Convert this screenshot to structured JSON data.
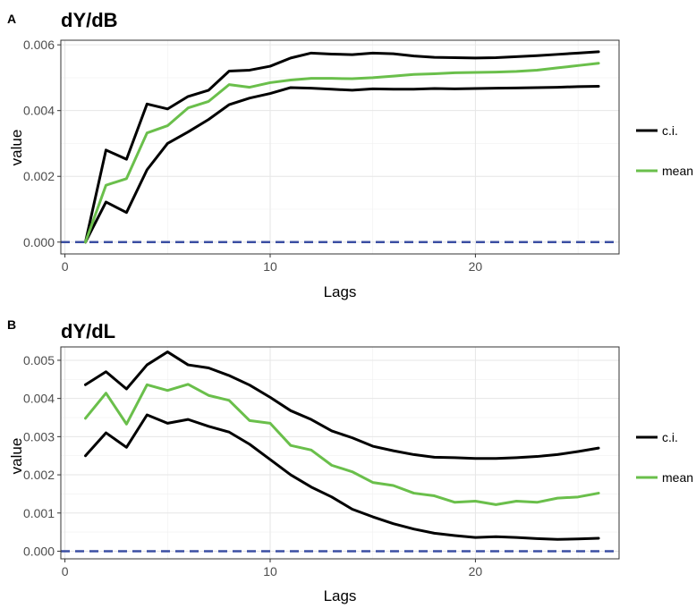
{
  "chart_data": [
    {
      "panel": "A",
      "type": "line",
      "title": "dY/dB",
      "xlabel": "Lags",
      "ylabel": "value",
      "xlim": [
        -0.2,
        27
      ],
      "ylim": [
        -0.00036,
        0.00614
      ],
      "xticks": [
        0,
        10,
        20
      ],
      "yticks": [
        0.0,
        0.002,
        0.004,
        0.006
      ],
      "ytick_labels": [
        "0.000",
        "0.002",
        "0.004",
        "0.006"
      ],
      "grid": true,
      "legend": "right",
      "reference_line": {
        "y": 0,
        "style": "dashed",
        "color": "#3b4fa3"
      },
      "x": [
        1,
        2,
        3,
        4,
        5,
        6,
        7,
        8,
        9,
        10,
        11,
        12,
        13,
        14,
        15,
        16,
        17,
        18,
        19,
        20,
        21,
        22,
        23,
        24,
        25,
        26
      ],
      "series": [
        {
          "name": "c.i.",
          "role": "upper",
          "color": "#000000",
          "values": [
            0.0,
            0.0028,
            0.00252,
            0.0042,
            0.00405,
            0.00443,
            0.00462,
            0.0052,
            0.00523,
            0.00535,
            0.0056,
            0.00575,
            0.00572,
            0.0057,
            0.00575,
            0.00573,
            0.00566,
            0.00562,
            0.00561,
            0.0056,
            0.00561,
            0.00564,
            0.00567,
            0.00571,
            0.00575,
            0.00579
          ]
        },
        {
          "name": "c.i.",
          "role": "lower",
          "color": "#000000",
          "values": [
            0.0,
            0.00122,
            0.0009,
            0.0022,
            0.003,
            0.00335,
            0.00373,
            0.00418,
            0.00438,
            0.00452,
            0.0047,
            0.00468,
            0.00465,
            0.00462,
            0.00466,
            0.00465,
            0.00465,
            0.00467,
            0.00466,
            0.00467,
            0.00468,
            0.00469,
            0.0047,
            0.00471,
            0.00473,
            0.00474
          ]
        },
        {
          "name": "mean",
          "role": "mean",
          "color": "#6abf4b",
          "values": [
            0.0,
            0.00173,
            0.00193,
            0.00332,
            0.00354,
            0.00408,
            0.00428,
            0.00479,
            0.00471,
            0.00485,
            0.00493,
            0.00498,
            0.00498,
            0.00497,
            0.005,
            0.00505,
            0.0051,
            0.00512,
            0.00515,
            0.00516,
            0.00517,
            0.00519,
            0.00523,
            0.0053,
            0.00537,
            0.00544
          ]
        }
      ]
    },
    {
      "panel": "B",
      "type": "line",
      "title": "dY/dL",
      "xlabel": "Lags",
      "ylabel": "value",
      "xlim": [
        -0.2,
        27
      ],
      "ylim": [
        -0.0002,
        0.00535
      ],
      "xticks": [
        0,
        10,
        20
      ],
      "yticks": [
        0.0,
        0.001,
        0.002,
        0.003,
        0.004,
        0.005
      ],
      "ytick_labels": [
        "0.000",
        "0.001",
        "0.002",
        "0.003",
        "0.004",
        "0.005"
      ],
      "grid": true,
      "legend": "right",
      "reference_line": {
        "y": 0,
        "style": "dashed",
        "color": "#3b4fa3"
      },
      "x": [
        1,
        2,
        3,
        4,
        5,
        6,
        7,
        8,
        9,
        10,
        11,
        12,
        13,
        14,
        15,
        16,
        17,
        18,
        19,
        20,
        21,
        22,
        23,
        24,
        25,
        26
      ],
      "series": [
        {
          "name": "c.i.",
          "role": "upper",
          "color": "#000000",
          "values": [
            0.00436,
            0.0047,
            0.00425,
            0.00488,
            0.00522,
            0.00488,
            0.0048,
            0.0046,
            0.00435,
            0.00403,
            0.00368,
            0.00345,
            0.00315,
            0.00297,
            0.00275,
            0.00263,
            0.00253,
            0.00246,
            0.00245,
            0.00243,
            0.00243,
            0.00245,
            0.00248,
            0.00253,
            0.00261,
            0.0027
          ]
        },
        {
          "name": "c.i.",
          "role": "lower",
          "color": "#000000",
          "values": [
            0.0025,
            0.0031,
            0.00272,
            0.00357,
            0.00335,
            0.00345,
            0.00327,
            0.00312,
            0.0028,
            0.0024,
            0.002,
            0.00168,
            0.00142,
            0.0011,
            0.0009,
            0.00072,
            0.00058,
            0.00047,
            0.00041,
            0.00036,
            0.00038,
            0.00036,
            0.00033,
            0.00031,
            0.00032,
            0.00034
          ]
        },
        {
          "name": "mean",
          "role": "mean",
          "color": "#6abf4b",
          "values": [
            0.00348,
            0.00414,
            0.00333,
            0.00436,
            0.00421,
            0.00437,
            0.00408,
            0.00395,
            0.00342,
            0.00335,
            0.00277,
            0.00265,
            0.00225,
            0.00208,
            0.0018,
            0.00172,
            0.00152,
            0.00145,
            0.00128,
            0.00131,
            0.00122,
            0.00131,
            0.00128,
            0.00139,
            0.00142,
            0.00152
          ]
        }
      ]
    }
  ],
  "legend_items": [
    {
      "label": "c.i.",
      "color": "#000000"
    },
    {
      "label": "mean",
      "color": "#6abf4b"
    }
  ]
}
